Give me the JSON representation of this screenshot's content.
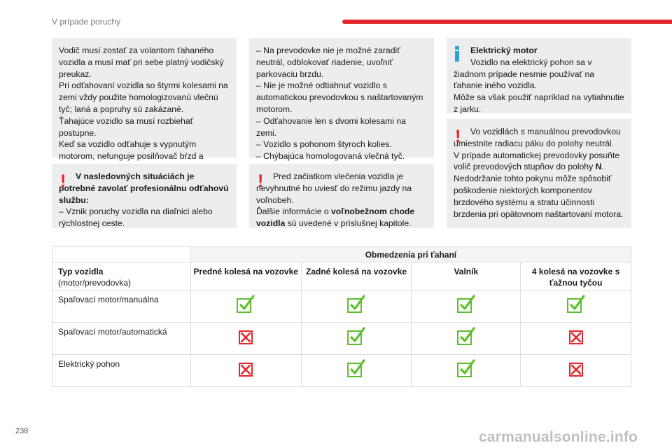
{
  "header": {
    "section_title": "V prípade poruchy",
    "accent_color": "#e5262a"
  },
  "page_number": "238",
  "watermark": "carmanualsonline.info",
  "boxes": {
    "driver": {
      "lines": [
        "Vodič musí zostať za volantom ťahaného vozidla a musí mať pri sebe platný vodičský preukaz.",
        "Pri odťahovaní vozidla so štyrmi kolesami na zemi vždy použite homologizovanú vlečnú tyč; laná a popruhy sú zakázané.",
        "Ťahajúce vozidlo sa musí rozbiehať postupne.",
        "Keď sa vozidlo odťahuje s vypnutým motorom, nefunguje posilňovač bŕzd a riadenia."
      ]
    },
    "professional": {
      "bold_text": "V nasledovných situáciách je potrebné zavolať profesionálnu odťahovú službu:",
      "item": "–  Vznik poruchy vozidla na diaľnici alebo rýchlostnej ceste."
    },
    "situations": {
      "lines": [
        "–  Na prevodovke nie je možné zaradiť neutrál, odblokovať riadenie, uvoľniť parkovaciu brzdu.",
        "–  Nie je možné odtiahnuť vozidlo s automatickou prevodovkou s naštartovaným motorom.",
        "–  Odťahovanie len s dvomi kolesami na zemi.",
        "–  Vozidlo s pohonom štyroch kolies.",
        "–  Chýbajúca homologovaná vlečná tyč."
      ]
    },
    "neutral": {
      "text_1": "Pred začiatkom vlečenia vozidla je nevyhnutné ho uviesť do režimu jazdy na voľnobeh.",
      "text_2": "Ďalšie informácie o ",
      "bold": "voľnobežnom chode vozidla",
      "text_3": " sú uvedené v príslušnej kapitole."
    },
    "electric": {
      "title": "Elektrický motor",
      "text_1": "Vozidlo na elektrický pohon sa v žiadnom prípade nesmie používať na ťahanie iného vozidla.",
      "text_2": "Môže sa však použiť napríklad na vytiahnutie z jarku."
    },
    "manual": {
      "text_1": "Vo vozidlách s manuálnou prevodovkou umiestnite radiacu páku do polohy neutrál.",
      "text_2a": "V prípade automatickej prevodovky posuňte volič prevodových stupňov do polohy ",
      "text_2b": "N",
      "text_2c": ".",
      "text_3": "Nedodržanie tohto pokynu môže spôsobiť poškodenie niektorých komponentov brzdového systému a stratu účinnosti brzdenia pri opätovnom naštartovaní motora."
    }
  },
  "table": {
    "title": "Obmedzenia pri ťahaní",
    "first_header": "Typ vozidla",
    "first_header_sub": "(motor/prevodovka)",
    "columns": [
      "Predné kolesá na vozovke",
      "Zadné kolesá na vozovke",
      "Valník",
      "4 kolesá na vozovke s ťažnou tyčou"
    ],
    "rows": [
      {
        "label": "Spaľovací motor/manuálna",
        "values": [
          true,
          true,
          true,
          true
        ]
      },
      {
        "label": "Spaľovací motor/automatická",
        "values": [
          false,
          true,
          true,
          false
        ]
      },
      {
        "label": "Elektrický pohon",
        "values": [
          false,
          true,
          true,
          false
        ]
      }
    ],
    "ok_color": "#5cbf2a",
    "no_color": "#e5262a"
  }
}
